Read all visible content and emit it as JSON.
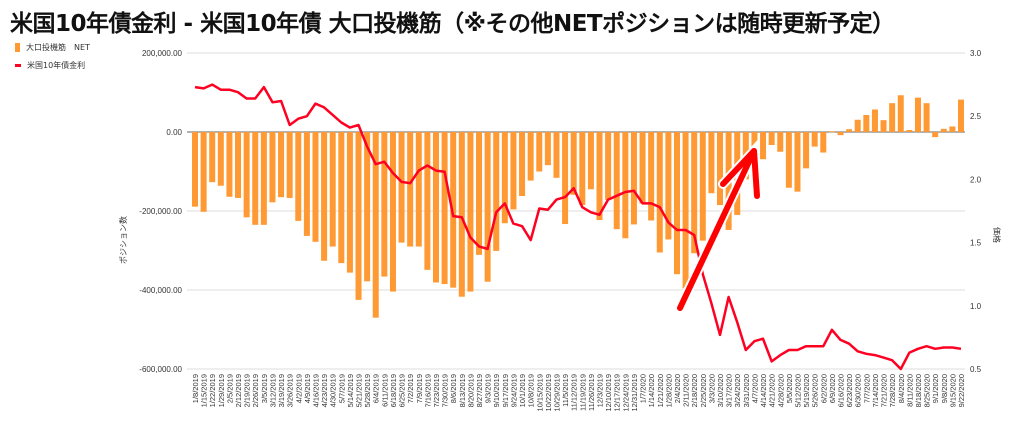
{
  "chart_data": {
    "type": "bar+line",
    "title": "米国10年債金利 - 米国10年債 大口投機筋（※その他NETポジションは随時更新予定）",
    "ylabel_left": "ポジション数",
    "ylabel_right": "価格",
    "ylim_left": [
      -600000,
      200000
    ],
    "ylim_right": [
      0.5,
      3.0
    ],
    "left_ticks": [
      "200,000.00",
      "0.00",
      "-200,000.00",
      "-400,000.00",
      "-600,000.00"
    ],
    "left_tick_values": [
      200000,
      0,
      -200000,
      -400000,
      -600000
    ],
    "right_ticks": [
      "3.0",
      "2.5",
      "2.0",
      "1.5",
      "1.0",
      "0.5"
    ],
    "right_tick_values": [
      3.0,
      2.5,
      2.0,
      1.5,
      1.0,
      0.5
    ],
    "grid": true,
    "legend_position": "top-left",
    "colors": {
      "bars": "#ff9933",
      "line": "#ff0022",
      "zero_line": "#666666",
      "grid": "#dddddd"
    },
    "categories": [
      "1/8/2019",
      "1/15/2019",
      "1/22/2019",
      "1/29/2019",
      "2/5/2019",
      "2/12/2019",
      "2/19/2019",
      "2/26/2019",
      "3/5/2019",
      "3/12/2019",
      "3/19/2019",
      "3/26/2019",
      "4/2/2019",
      "4/9/2019",
      "4/16/2019",
      "4/23/2019",
      "4/30/2019",
      "5/7/2019",
      "5/14/2019",
      "5/21/2019",
      "5/28/2019",
      "6/4/2019",
      "6/11/2019",
      "6/18/2019",
      "6/25/2019",
      "7/2/2019",
      "7/9/2019",
      "7/16/2019",
      "7/23/2019",
      "7/30/2019",
      "8/6/2019",
      "8/13/2019",
      "8/20/2019",
      "8/27/2019",
      "9/3/2019",
      "9/10/2019",
      "9/17/2019",
      "9/24/2019",
      "10/1/2019",
      "10/8/2019",
      "10/15/2019",
      "10/22/2019",
      "10/29/2019",
      "11/5/2019",
      "11/12/2019",
      "11/19/2019",
      "11/26/2019",
      "12/3/2019",
      "12/10/2019",
      "12/17/2019",
      "12/24/2019",
      "12/31/2019",
      "1/7/2020",
      "1/14/2020",
      "1/21/2020",
      "1/28/2020",
      "2/4/2020",
      "2/11/2020",
      "2/18/2020",
      "2/25/2020",
      "3/3/2020",
      "3/10/2020",
      "3/17/2020",
      "3/24/2020",
      "3/31/2020",
      "4/7/2020",
      "4/14/2020",
      "4/21/2020",
      "4/28/2020",
      "5/5/2020",
      "5/12/2020",
      "5/19/2020",
      "5/26/2020",
      "6/2/2020",
      "6/9/2020",
      "6/16/2020",
      "6/23/2020",
      "6/30/2020",
      "7/7/2020",
      "7/14/2020",
      "7/21/2020",
      "7/28/2020",
      "8/4/2020",
      "8/11/2020",
      "8/18/2020",
      "8/25/2020",
      "9/1/2020",
      "9/8/2020",
      "9/15/2020",
      "9/22/2020"
    ],
    "series": [
      {
        "name": "大口投機筋　NET",
        "type": "bar",
        "axis": "left",
        "values": [
          -189000,
          -202000,
          -127000,
          -136000,
          -164000,
          -167000,
          -216000,
          -235000,
          -235000,
          -178000,
          -165000,
          -167000,
          -225000,
          -263000,
          -278000,
          -326000,
          -290000,
          -332000,
          -356000,
          -425000,
          -378000,
          -470000,
          -366000,
          -404000,
          -280000,
          -290000,
          -290000,
          -349000,
          -381000,
          -385000,
          -394000,
          -417000,
          -404000,
          -311000,
          -379000,
          -301000,
          -231000,
          -196000,
          -162000,
          -123000,
          -100000,
          -84000,
          -116000,
          -233000,
          -159000,
          -185000,
          -145000,
          -223000,
          -172000,
          -246000,
          -269000,
          -234000,
          -181000,
          -224000,
          -305000,
          -272000,
          -360000,
          -396000,
          -307000,
          -275000,
          -155000,
          -185000,
          -248000,
          -210000,
          -120000,
          -45000,
          -69000,
          -33000,
          -50000,
          -141000,
          -151000,
          -92000,
          -37000,
          -52000,
          2000,
          -8000,
          7000,
          31000,
          43000,
          57000,
          30000,
          73000,
          93000,
          5000,
          87000,
          73000,
          -13000,
          8000,
          14000,
          82000
        ]
      },
      {
        "name": "米国10年債金利",
        "type": "line",
        "axis": "right",
        "values": [
          2.73,
          2.72,
          2.75,
          2.71,
          2.71,
          2.69,
          2.64,
          2.64,
          2.73,
          2.61,
          2.62,
          2.43,
          2.48,
          2.5,
          2.6,
          2.57,
          2.51,
          2.45,
          2.41,
          2.43,
          2.26,
          2.12,
          2.14,
          2.05,
          1.98,
          1.97,
          2.07,
          2.11,
          2.07,
          2.06,
          1.71,
          1.7,
          1.54,
          1.47,
          1.45,
          1.74,
          1.81,
          1.65,
          1.63,
          1.52,
          1.77,
          1.76,
          1.84,
          1.86,
          1.93,
          1.78,
          1.74,
          1.72,
          1.84,
          1.87,
          1.9,
          1.91,
          1.81,
          1.81,
          1.78,
          1.66,
          1.6,
          1.6,
          1.56,
          1.25,
          1.02,
          0.77,
          1.07,
          0.87,
          0.65,
          0.72,
          0.74,
          0.56,
          0.61,
          0.65,
          0.65,
          0.68,
          0.68,
          0.68,
          0.81,
          0.73,
          0.7,
          0.64,
          0.62,
          0.61,
          0.59,
          0.57,
          0.5,
          0.63,
          0.66,
          0.68,
          0.66,
          0.67,
          0.67,
          0.66
        ]
      }
    ],
    "annotations": [
      {
        "type": "arrow",
        "direction": "up-right",
        "color": "#ff0000"
      }
    ]
  }
}
